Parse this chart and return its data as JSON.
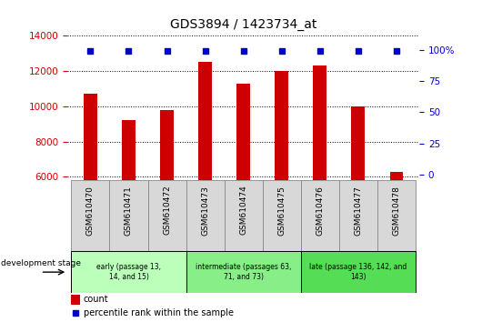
{
  "title": "GDS3894 / 1423734_at",
  "categories": [
    "GSM610470",
    "GSM610471",
    "GSM610472",
    "GSM610473",
    "GSM610474",
    "GSM610475",
    "GSM610476",
    "GSM610477",
    "GSM610478"
  ],
  "counts": [
    10700,
    9200,
    9800,
    12500,
    11300,
    12000,
    12300,
    10000,
    6300
  ],
  "percentiles": [
    99,
    99,
    99,
    99,
    99,
    99,
    99,
    99,
    99
  ],
  "bar_color": "#cc0000",
  "marker_color": "#0000cc",
  "ylim_left": [
    5800,
    14200
  ],
  "ylim_right": [
    -4.5,
    114
  ],
  "yticks_left": [
    6000,
    8000,
    10000,
    12000,
    14000
  ],
  "yticks_right": [
    0,
    25,
    50,
    75,
    100
  ],
  "ytick_labels_right": [
    "0",
    "25",
    "50",
    "75",
    "100%"
  ],
  "groups": [
    {
      "label": "early (passage 13,\n14, and 15)",
      "color": "#bbffbb",
      "indices": [
        0,
        1,
        2
      ]
    },
    {
      "label": "intermediate (passages 63,\n71, and 73)",
      "color": "#88ee88",
      "indices": [
        3,
        4,
        5
      ]
    },
    {
      "label": "late (passage 136, 142, and\n143)",
      "color": "#55dd55",
      "indices": [
        6,
        7,
        8
      ]
    }
  ],
  "group_header": "development stage",
  "legend_count_label": "count",
  "legend_percentile_label": "percentile rank within the sample",
  "left_axis_color": "#cc0000",
  "right_axis_color": "#0000cc",
  "tick_bg_color": "#d8d8d8",
  "tick_border_color": "#888888"
}
